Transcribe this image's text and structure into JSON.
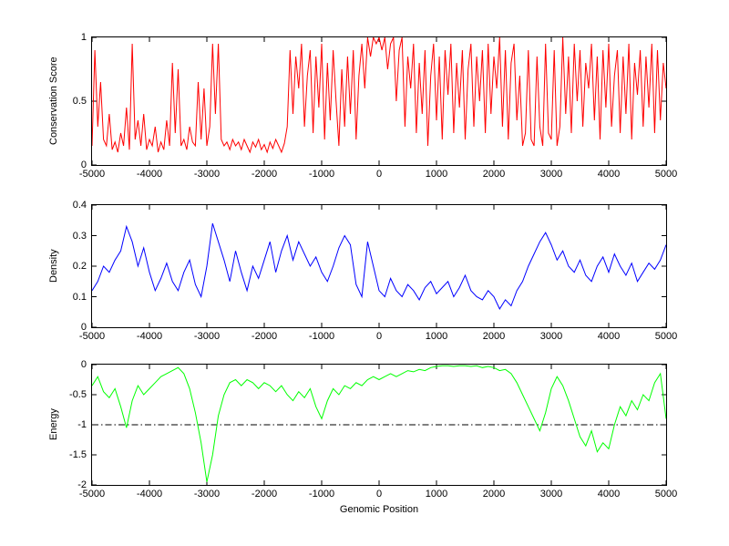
{
  "figure": {
    "xlabel": "Genomic Position",
    "background": "#ffffff",
    "axis_color": "#000000"
  },
  "chart_data": [
    {
      "type": "line",
      "title": "",
      "ylabel": "Conservation Score",
      "xlabel": "",
      "color": "#ff0000",
      "grid": false,
      "legend": null,
      "xlim": [
        -5000,
        5000
      ],
      "ylim": [
        0,
        1
      ],
      "x_ticks": [
        -5000,
        -4000,
        -3000,
        -2000,
        -1000,
        0,
        1000,
        2000,
        3000,
        4000,
        5000
      ],
      "y_ticks": [
        0,
        0.5,
        1
      ],
      "x_start": -5000,
      "x_step": 50,
      "values": [
        0.15,
        0.9,
        0.3,
        0.65,
        0.2,
        0.15,
        0.4,
        0.12,
        0.18,
        0.1,
        0.25,
        0.15,
        0.45,
        0.12,
        0.95,
        0.2,
        0.35,
        0.15,
        0.4,
        0.12,
        0.2,
        0.15,
        0.3,
        0.1,
        0.18,
        0.12,
        0.35,
        0.15,
        0.8,
        0.25,
        0.75,
        0.15,
        0.2,
        0.12,
        0.3,
        0.18,
        0.15,
        0.65,
        0.2,
        0.6,
        0.15,
        0.3,
        0.95,
        0.4,
        0.95,
        0.2,
        0.15,
        0.18,
        0.12,
        0.2,
        0.15,
        0.18,
        0.12,
        0.2,
        0.15,
        0.1,
        0.18,
        0.14,
        0.2,
        0.12,
        0.16,
        0.1,
        0.18,
        0.13,
        0.2,
        0.15,
        0.1,
        0.17,
        0.3,
        0.9,
        0.4,
        0.85,
        0.6,
        0.95,
        0.3,
        0.7,
        0.9,
        0.25,
        0.85,
        0.45,
        0.95,
        0.2,
        0.8,
        0.35,
        0.9,
        0.5,
        0.15,
        0.75,
        0.3,
        0.85,
        0.4,
        0.9,
        0.2,
        0.7,
        0.95,
        0.6,
        1.0,
        0.85,
        1.0,
        0.95,
        1.0,
        0.9,
        1.0,
        0.75,
        0.95,
        1.0,
        0.5,
        0.9,
        1.0,
        0.3,
        0.85,
        0.6,
        0.95,
        0.25,
        0.8,
        0.4,
        0.9,
        0.15,
        0.7,
        0.95,
        0.35,
        0.85,
        0.2,
        0.9,
        0.55,
        0.95,
        0.25,
        0.8,
        0.45,
        0.9,
        0.2,
        0.75,
        0.95,
        0.3,
        0.85,
        0.5,
        0.9,
        0.25,
        0.95,
        0.4,
        0.85,
        0.6,
        1.0,
        0.3,
        0.9,
        0.2,
        0.8,
        0.95,
        0.35,
        0.7,
        0.15,
        0.25,
        0.9,
        0.2,
        0.15,
        0.85,
        0.3,
        0.15,
        0.95,
        0.25,
        0.2,
        0.9,
        0.15,
        0.3,
        1.0,
        0.4,
        0.85,
        0.25,
        0.95,
        0.5,
        0.9,
        0.3,
        0.8,
        0.6,
        0.95,
        0.35,
        0.85,
        0.2,
        0.9,
        0.45,
        0.95,
        0.3,
        0.7,
        0.9,
        0.25,
        0.85,
        0.4,
        0.95,
        0.2,
        0.8,
        0.55,
        0.9,
        0.3,
        0.85,
        0.45,
        0.95,
        0.25,
        0.9,
        0.35,
        0.8,
        0.6
      ]
    },
    {
      "type": "line",
      "title": "",
      "ylabel": "Density",
      "xlabel": "",
      "color": "#0000ff",
      "grid": false,
      "legend": null,
      "xlim": [
        -5000,
        5000
      ],
      "ylim": [
        0,
        0.4
      ],
      "x_ticks": [
        -5000,
        -4000,
        -3000,
        -2000,
        -1000,
        0,
        1000,
        2000,
        3000,
        4000,
        5000
      ],
      "y_ticks": [
        0,
        0.1,
        0.2,
        0.3,
        0.4
      ],
      "x_start": -5000,
      "x_step": 100,
      "values": [
        0.12,
        0.15,
        0.2,
        0.18,
        0.22,
        0.25,
        0.33,
        0.28,
        0.2,
        0.26,
        0.18,
        0.12,
        0.16,
        0.21,
        0.15,
        0.12,
        0.18,
        0.22,
        0.14,
        0.1,
        0.2,
        0.34,
        0.28,
        0.22,
        0.15,
        0.25,
        0.18,
        0.12,
        0.2,
        0.16,
        0.22,
        0.28,
        0.18,
        0.25,
        0.3,
        0.22,
        0.28,
        0.24,
        0.2,
        0.23,
        0.18,
        0.15,
        0.2,
        0.26,
        0.3,
        0.27,
        0.14,
        0.1,
        0.28,
        0.2,
        0.12,
        0.1,
        0.16,
        0.12,
        0.1,
        0.14,
        0.12,
        0.09,
        0.13,
        0.15,
        0.11,
        0.13,
        0.15,
        0.1,
        0.13,
        0.17,
        0.12,
        0.1,
        0.09,
        0.12,
        0.1,
        0.06,
        0.09,
        0.07,
        0.12,
        0.15,
        0.2,
        0.24,
        0.28,
        0.31,
        0.27,
        0.22,
        0.25,
        0.2,
        0.18,
        0.22,
        0.17,
        0.15,
        0.2,
        0.23,
        0.18,
        0.24,
        0.2,
        0.17,
        0.21,
        0.15,
        0.18,
        0.21,
        0.19,
        0.22,
        0.27
      ]
    },
    {
      "type": "line",
      "title": "",
      "ylabel": "Energy",
      "xlabel": "Genomic Position",
      "color": "#00ff00",
      "grid": false,
      "legend": null,
      "xlim": [
        -5000,
        5000
      ],
      "ylim": [
        -2,
        0
      ],
      "x_ticks": [
        -5000,
        -4000,
        -3000,
        -2000,
        -1000,
        0,
        1000,
        2000,
        3000,
        4000,
        5000
      ],
      "y_ticks": [
        -2,
        -1.5,
        -1,
        -0.5,
        0
      ],
      "ref_line": {
        "y": -1,
        "color": "#000000",
        "style": "dash-dot"
      },
      "x_start": -5000,
      "x_step": 100,
      "values": [
        -0.35,
        -0.2,
        -0.45,
        -0.55,
        -0.4,
        -0.7,
        -1.05,
        -0.6,
        -0.35,
        -0.5,
        -0.4,
        -0.3,
        -0.2,
        -0.15,
        -0.1,
        -0.05,
        -0.15,
        -0.4,
        -0.8,
        -1.3,
        -1.95,
        -1.5,
        -0.85,
        -0.5,
        -0.3,
        -0.25,
        -0.35,
        -0.25,
        -0.3,
        -0.4,
        -0.3,
        -0.35,
        -0.45,
        -0.35,
        -0.5,
        -0.6,
        -0.45,
        -0.55,
        -0.4,
        -0.7,
        -0.9,
        -0.6,
        -0.4,
        -0.5,
        -0.35,
        -0.4,
        -0.3,
        -0.35,
        -0.25,
        -0.2,
        -0.25,
        -0.2,
        -0.15,
        -0.2,
        -0.15,
        -0.1,
        -0.12,
        -0.08,
        -0.1,
        -0.05,
        -0.03,
        -0.02,
        -0.02,
        -0.03,
        -0.02,
        -0.02,
        -0.03,
        -0.02,
        -0.05,
        -0.03,
        -0.05,
        -0.1,
        -0.08,
        -0.15,
        -0.3,
        -0.5,
        -0.7,
        -0.9,
        -1.1,
        -0.8,
        -0.4,
        -0.2,
        -0.35,
        -0.6,
        -0.9,
        -1.2,
        -1.35,
        -1.1,
        -1.45,
        -1.3,
        -1.4,
        -1.0,
        -0.7,
        -0.85,
        -0.6,
        -0.75,
        -0.5,
        -0.6,
        -0.3,
        -0.15,
        -0.9
      ]
    }
  ]
}
